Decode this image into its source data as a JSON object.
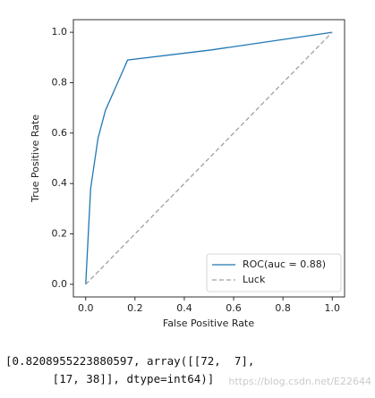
{
  "chart_data": {
    "type": "line",
    "xlabel": "False Positive Rate",
    "ylabel": "True Positive Rate",
    "series": [
      {
        "name": "ROC(auc = 0.88)",
        "color": "#1f77b4",
        "dash": false,
        "x": [
          0,
          0.02,
          0.05,
          0.08,
          0.17,
          0.51,
          1
        ],
        "values": [
          0,
          0.38,
          0.58,
          0.69,
          0.89,
          0.93,
          1
        ]
      },
      {
        "name": "Luck",
        "color": "#a0a0a0",
        "dash": true,
        "x": [
          0,
          1
        ],
        "values": [
          0,
          1
        ]
      }
    ],
    "xlim": [
      -0.05,
      1.05
    ],
    "ylim": [
      -0.05,
      1.05
    ],
    "xticks": [
      {
        "value": 0,
        "label": "0.0"
      },
      0.2,
      0.4,
      0.6,
      0.8,
      {
        "value": 1,
        "label": "1.0"
      }
    ],
    "yticks": [
      {
        "value": 0,
        "label": "0.0"
      },
      0.2,
      0.4,
      0.6,
      0.8,
      {
        "value": 1,
        "label": "1.0"
      }
    ],
    "grid": false,
    "legend": "lower right"
  },
  "output": [
    "[0.8208955223880597, array([[72,  7],",
    "       [17, 38]], dtype=int64)]"
  ],
  "watermark": "https://blog.csdn.net/E22644"
}
